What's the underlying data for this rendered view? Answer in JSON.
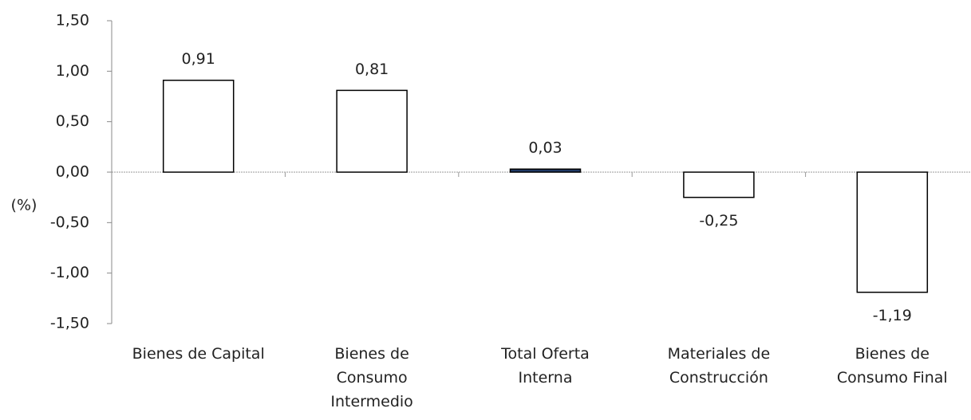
{
  "chart_data": {
    "type": "bar",
    "y_label": "(%)",
    "categories": [
      "Bienes de Capital",
      "Bienes de\nConsumo\nIntermedio",
      "Total Oferta\nInterna",
      "Materiales de\nConstrucción",
      "Bienes de\nConsumo Final"
    ],
    "values": [
      0.91,
      0.81,
      0.03,
      -0.25,
      -1.19
    ],
    "value_labels": [
      "0,91",
      "0,81",
      "0,03",
      "-0,25",
      "-1,19"
    ],
    "colors": [
      "#ffffff",
      "#ffffff",
      "#1f3864",
      "#ffffff",
      "#ffffff"
    ],
    "ylim": [
      -1.5,
      1.5
    ],
    "yticks": [
      {
        "value": 1.5,
        "label": "1,50"
      },
      {
        "value": 1.0,
        "label": "1,00"
      },
      {
        "value": 0.5,
        "label": "0,50"
      },
      {
        "value": 0.0,
        "label": "0,00"
      },
      {
        "value": -0.5,
        "label": "-0,50"
      },
      {
        "value": -1.0,
        "label": "-1,00"
      },
      {
        "value": -1.5,
        "label": "-1,50"
      }
    ]
  }
}
